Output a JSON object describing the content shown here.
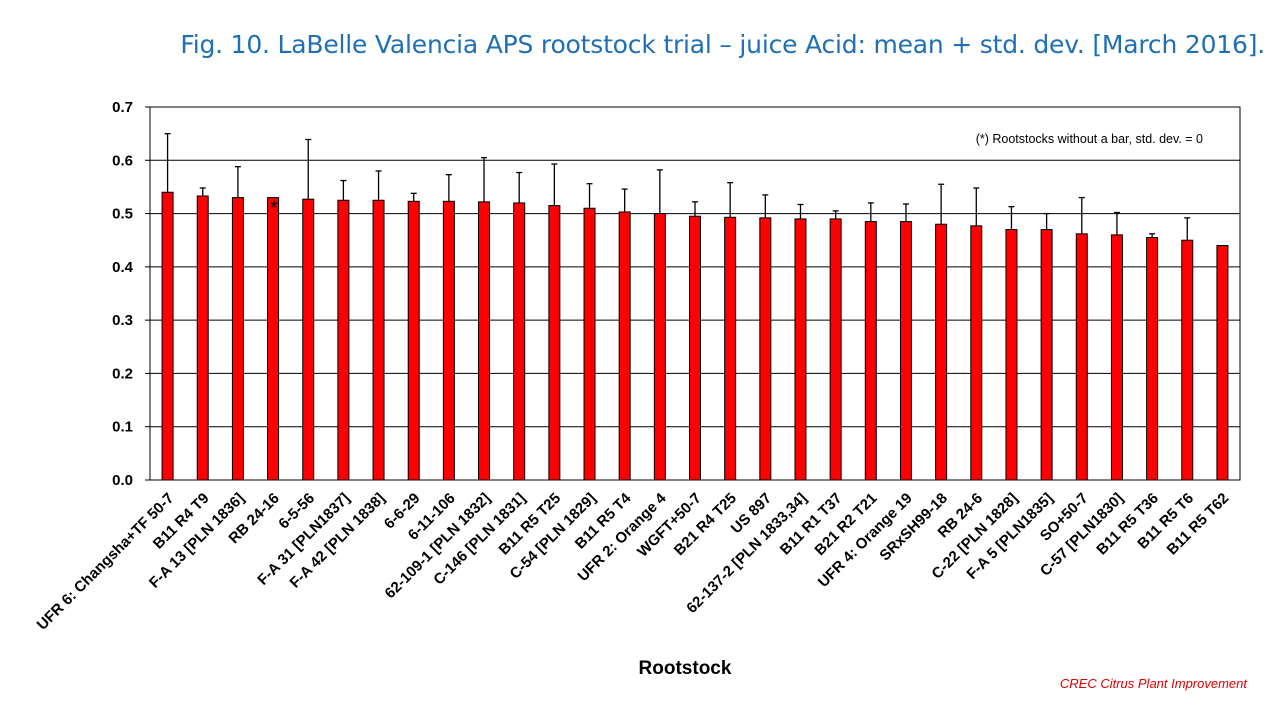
{
  "title": "Fig. 10. LaBelle Valencia APS rootstock trial – juice Acid: mean + std. dev. [March 2016].",
  "credit": "CREC Citrus Plant Improvement",
  "colors": {
    "bar": "#ff0000",
    "bar_stroke": "#000000",
    "title": "#1f6fb4",
    "credit": "#e00000"
  },
  "chart_data": {
    "type": "bar",
    "title": "Fig. 10. LaBelle Valencia APS rootstock trial – juice Acid: mean + std. dev. [March 2016].",
    "xlabel": "Rootstock",
    "ylabel": "",
    "ylim": [
      0,
      0.7
    ],
    "yticks": [
      "0.0",
      "0.1",
      "0.2",
      "0.3",
      "0.4",
      "0.5",
      "0.6",
      "0.7"
    ],
    "grid": true,
    "annotation": "(*) Rootstocks without  a bar, std. dev. = 0",
    "star_marker": "*",
    "categories": [
      "UFR 6: Changsha+TF 50-7",
      "B11 R4 T9",
      "F-A 13 [PLN 1836]",
      "RB 24-16",
      "6-5-56",
      "F-A 31 [PLN1837]",
      "F-A 42 [PLN 1838]",
      "6-6-29",
      "6-11-106",
      "62-109-1 [PLN 1832]",
      "C-146 [PLN 1831]",
      "B11 R5 T25",
      "C-54 [PLN 1829]",
      "B11 R5 T4",
      "UFR 2: Orange 4",
      "WGFT+50-7",
      "B21 R4 T25",
      "US 897",
      "62-137-2 [PLN 1833,34]",
      "B11 R1 T37",
      "B21 R2 T21",
      "UFR 4: Orange 19",
      "SRxSH99-18",
      "RB 24-6",
      "C-22 [PLN 1828]",
      "F-A 5 [PLN1835]",
      "SO+50-7",
      "C-57 [PLN1830]",
      "B11 R5 T36",
      "B11 R5 T6",
      "B11 R5 T62"
    ],
    "series": [
      {
        "values": [
          0.54,
          0.533,
          0.53,
          0.53,
          0.527,
          0.525,
          0.525,
          0.523,
          0.523,
          0.522,
          0.52,
          0.515,
          0.51,
          0.503,
          0.5,
          0.495,
          0.493,
          0.492,
          0.49,
          0.49,
          0.485,
          0.485,
          0.48,
          0.477,
          0.47,
          0.47,
          0.462,
          0.46,
          0.455,
          0.45,
          0.44
        ],
        "std_dev": [
          0.11,
          0.015,
          0.058,
          0.0,
          0.112,
          0.037,
          0.055,
          0.015,
          0.05,
          0.083,
          0.057,
          0.078,
          0.046,
          0.043,
          0.082,
          0.027,
          0.065,
          0.043,
          0.027,
          0.015,
          0.035,
          0.033,
          0.075,
          0.071,
          0.043,
          0.03,
          0.068,
          0.042,
          0.007,
          0.042,
          0.0
        ]
      }
    ]
  }
}
